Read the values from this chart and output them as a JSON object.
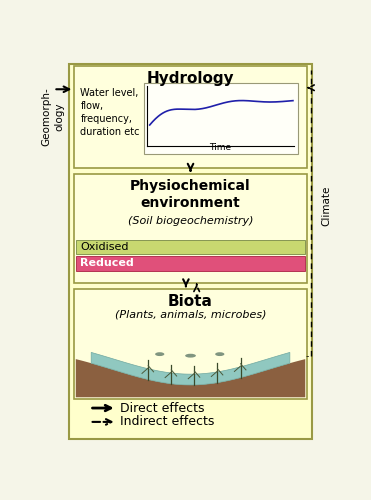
{
  "fig_bg": "#f5f5e8",
  "outer_bg": "#ffffcc",
  "outer_border": "#999944",
  "panel_bg": "#ffffdd",
  "panel_border": "#999944",
  "hydrology_title": "Hydrology",
  "hydrology_label": "Water level,\nflow,\nfrequency,\nduration etc",
  "hydrology_xlabel": "Time",
  "physiochem_title": "Physiochemical\nenvironment",
  "physiochem_subtitle": "(Soil biogeochemistry)",
  "oxidised_color": "#c8d870",
  "reduced_color": "#e0507a",
  "oxidised_label": "Oxidised",
  "reduced_label": "Reduced",
  "biota_title": "Biota",
  "biota_subtitle": "(Plants, animals, microbes)",
  "water_color": "#90c8c0",
  "soil_color": "#8B6040",
  "geomorph_label": "Geomorph-\nology",
  "climate_label": "Climate",
  "curve_color": "#2020aa",
  "arrow_color": "#111111"
}
